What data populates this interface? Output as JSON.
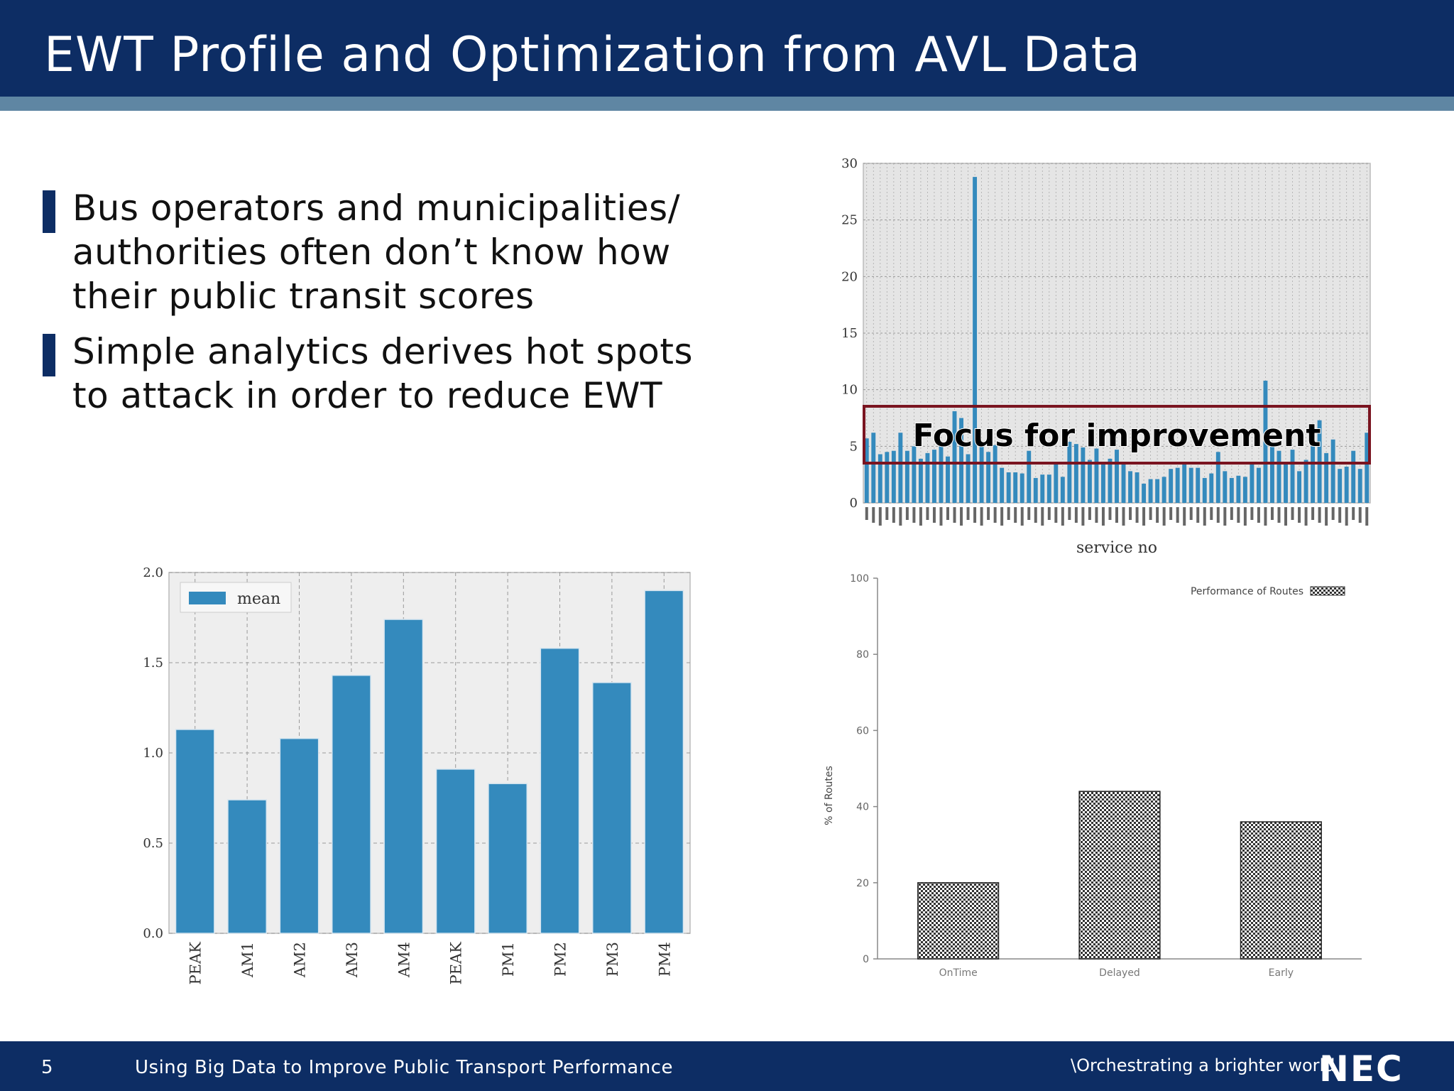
{
  "header": {
    "title": "EWT Profile and Optimization from AVL Data"
  },
  "bullets": [
    "Bus operators and municipalities/ authorities often don’t know how their public transit scores",
    "Simple analytics derives hot spots to attack in order to reduce EWT"
  ],
  "callout": "Focus for improvement",
  "footer": {
    "page": "5",
    "text": "Using Big Data to Improve Public Transport Performance",
    "tagline": "\\Orchestrating a brighter world",
    "logo": "NEC"
  },
  "colors": {
    "header": "#0d2d64",
    "bar": "#348abd",
    "callout_border": "#7a1420"
  },
  "chart_data": [
    {
      "type": "bar",
      "xlabel": "service no",
      "ylim": [
        0,
        30
      ],
      "yticks": [
        "0",
        "5",
        "10",
        "15",
        "20",
        "25",
        "30"
      ],
      "grid": true,
      "values": [
        5.7,
        6.2,
        4.3,
        4.5,
        4.6,
        6.2,
        4.6,
        5.0,
        3.9,
        4.4,
        4.7,
        5.0,
        4.1,
        8.1,
        7.5,
        4.3,
        28.8,
        5.1,
        4.5,
        5.1,
        3.1,
        2.7,
        2.7,
        2.6,
        4.6,
        2.2,
        2.5,
        2.5,
        3.5,
        2.3,
        5.4,
        5.2,
        4.9,
        3.8,
        4.8,
        3.5,
        3.9,
        4.7,
        3.6,
        2.8,
        2.7,
        1.7,
        2.1,
        2.1,
        2.3,
        3.0,
        3.1,
        3.6,
        3.1,
        3.1,
        2.2,
        2.6,
        4.5,
        2.8,
        2.2,
        2.4,
        2.3,
        3.4,
        3.1,
        10.8,
        5.1,
        4.6,
        3.6,
        4.7,
        2.8,
        3.8,
        5.6,
        7.3,
        4.4,
        5.6,
        3.0,
        3.2,
        4.6,
        3.0,
        6.2
      ]
    },
    {
      "type": "bar",
      "categories": [
        "PEAK",
        "AM1",
        "AM2",
        "AM3",
        "AM4",
        "PEAK",
        "PM1",
        "PM2",
        "PM3",
        "PM4"
      ],
      "series": [
        {
          "name": "mean",
          "values": [
            1.13,
            0.74,
            1.08,
            1.43,
            1.74,
            0.91,
            0.83,
            1.58,
            1.39,
            1.9
          ]
        }
      ],
      "ylim": [
        0,
        2.0
      ],
      "yticks": [
        "0.0",
        "0.5",
        "1.0",
        "1.5",
        "2.0"
      ],
      "grid": true,
      "legend": "top-left"
    },
    {
      "type": "bar",
      "categories": [
        "OnTime",
        "Delayed",
        "Early"
      ],
      "series": [
        {
          "name": "Performance of Routes",
          "values": [
            20,
            44,
            36
          ]
        }
      ],
      "ylabel": "% of Routes",
      "ylim": [
        0,
        100
      ],
      "yticks": [
        "0",
        "20",
        "40",
        "60",
        "80",
        "100"
      ],
      "legend": "top-right"
    }
  ]
}
